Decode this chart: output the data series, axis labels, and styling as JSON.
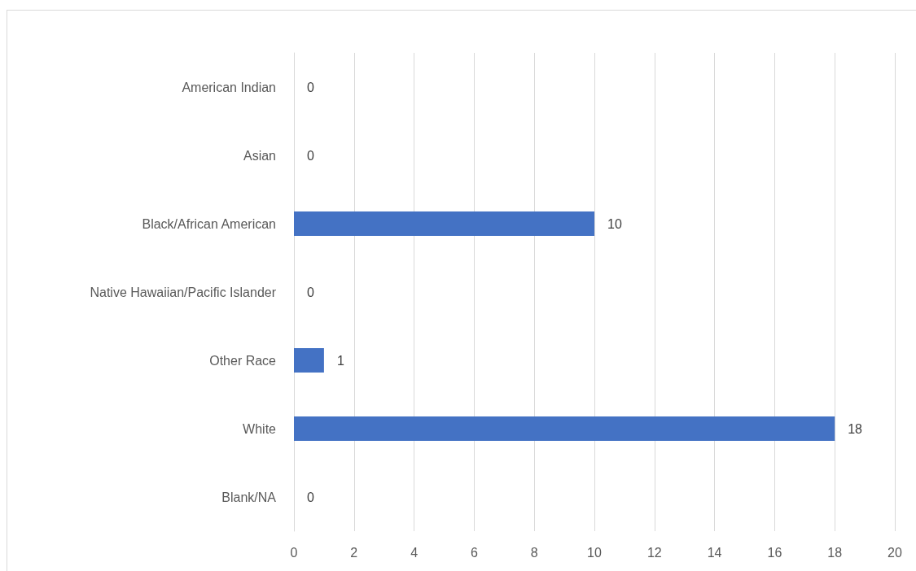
{
  "chart_data": {
    "type": "bar",
    "orientation": "horizontal",
    "categories": [
      "American Indian",
      "Asian",
      "Black/African American",
      "Native Hawaiian/Pacific Islander",
      "Other Race",
      "White",
      "Blank/NA"
    ],
    "values": [
      0,
      0,
      10,
      0,
      1,
      18,
      0
    ],
    "color": "#4472c4",
    "xlim": [
      0,
      20
    ],
    "xticks": [
      0,
      2,
      4,
      6,
      8,
      10,
      12,
      14,
      16,
      18,
      20
    ],
    "grid": "x",
    "data_labels": true
  }
}
